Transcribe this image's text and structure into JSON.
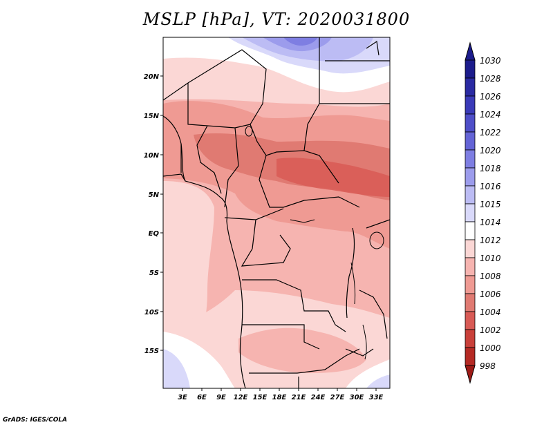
{
  "title": "MSLP [hPa], VT: 2020031800",
  "credit": "GrADS: IGES/COLA",
  "map": {
    "lat_labels": [
      "20N",
      "15N",
      "10N",
      "5N",
      "EQ",
      "5S",
      "10S",
      "15S"
    ],
    "lon_labels": [
      "3E",
      "6E",
      "9E",
      "12E",
      "15E",
      "18E",
      "21E",
      "24E",
      "27E",
      "30E",
      "33E"
    ]
  },
  "colorbar": {
    "levels": [
      "1030",
      "1028",
      "1026",
      "1024",
      "1022",
      "1020",
      "1018",
      "1016",
      "1015",
      "1014",
      "1012",
      "1010",
      "1008",
      "1006",
      "1004",
      "1002",
      "1000",
      "998"
    ],
    "colors": [
      "#1c1c8c",
      "#2a2aa2",
      "#3a3ab8",
      "#4e4ec8",
      "#6464d6",
      "#7e7ee2",
      "#9c9cec",
      "#bcbcf4",
      "#d9d9fa",
      "#ffffff",
      "#fbd7d5",
      "#f6b4b0",
      "#ef9a93",
      "#e07a72",
      "#d85a55",
      "#c9403a",
      "#b52a24",
      "#9e1a16"
    ]
  },
  "chart_data": {
    "type": "heatmap",
    "title": "MSLP [hPa], VT: 2020031800",
    "variable": "MSLP",
    "units": "hPa",
    "valid_time": "2020031800",
    "lon_ticks": [
      "3E",
      "6E",
      "9E",
      "12E",
      "15E",
      "18E",
      "21E",
      "24E",
      "27E",
      "30E",
      "33E"
    ],
    "lat_ticks": [
      "20N",
      "15N",
      "10N",
      "5N",
      "EQ",
      "5S",
      "10S",
      "15S"
    ],
    "colorbar_levels": [
      1030,
      1028,
      1026,
      1024,
      1022,
      1020,
      1018,
      1016,
      1015,
      1014,
      1012,
      1010,
      1008,
      1006,
      1004,
      1002,
      1000,
      998
    ],
    "lower_bound_label": "998",
    "upper_bound_label": "1030"
  }
}
